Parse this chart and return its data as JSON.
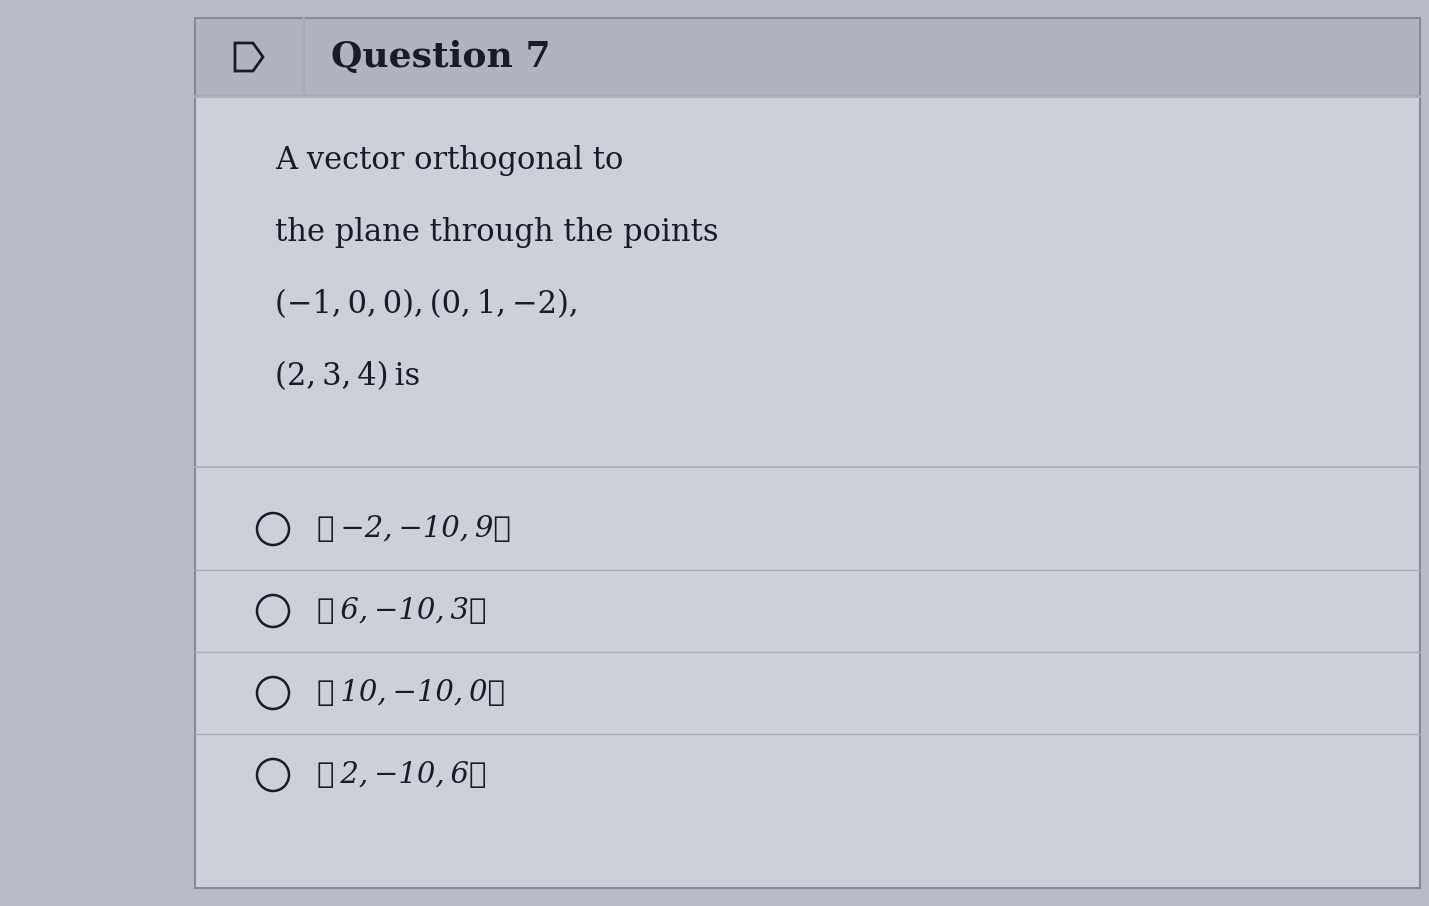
{
  "title": "Question 7",
  "question_text_lines": [
    "A vector orthogonal to",
    "the plane through the points",
    "(−1, 0, 0), (0, 1, −2),",
    "(2, 3, 4) is"
  ],
  "options": [
    "〈 −2, −10, 9〉",
    "〈 6, −10, 3〉",
    "〈 10, −10, 0〉",
    "〈 2, −10, 6〉"
  ],
  "bg_color": "#b8bcc8",
  "header_bg": "#b0b4c0",
  "content_bg": "#cdd0d8",
  "divider_color": "#a8acb8",
  "text_color": "#1a1a2a",
  "title_fontsize": 26,
  "question_fontsize": 22,
  "option_fontsize": 21
}
